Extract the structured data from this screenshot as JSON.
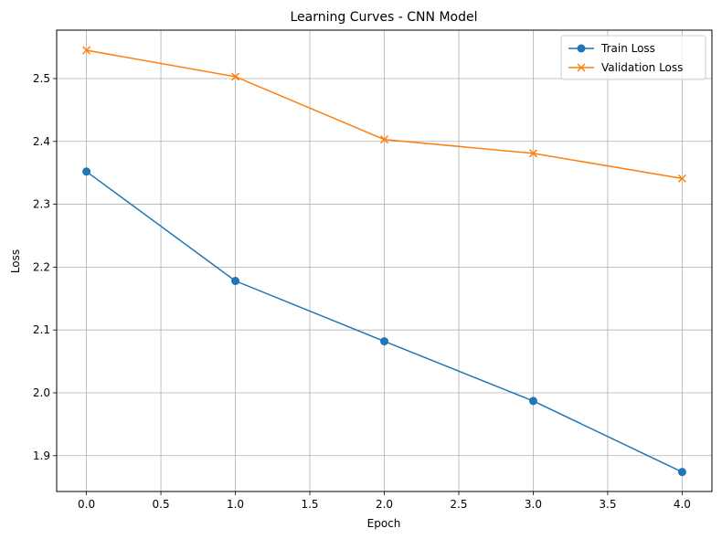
{
  "chart_data": {
    "type": "line",
    "title": "Learning Curves - CNN Model",
    "xlabel": "Epoch",
    "ylabel": "Loss",
    "xlim": [
      -0.2,
      4.2
    ],
    "ylim": [
      1.843,
      2.577
    ],
    "grid": true,
    "legend_position": "top-right",
    "x": [
      0,
      1,
      2,
      3,
      4
    ],
    "x_ticks": [
      0.0,
      0.5,
      1.0,
      1.5,
      2.0,
      2.5,
      3.0,
      3.5,
      4.0
    ],
    "x_tick_labels": [
      "0.0",
      "0.5",
      "1.0",
      "1.5",
      "2.0",
      "2.5",
      "3.0",
      "3.5",
      "4.0"
    ],
    "y_ticks": [
      1.9,
      2.0,
      2.1,
      2.2,
      2.3,
      2.4,
      2.5
    ],
    "y_tick_labels": [
      "1.9",
      "2.0",
      "2.1",
      "2.2",
      "2.3",
      "2.4",
      "2.5"
    ],
    "series": [
      {
        "name": "Train Loss",
        "marker": "circle",
        "color": "#1f77b4",
        "values": [
          2.352,
          2.178,
          2.082,
          1.987,
          1.874
        ]
      },
      {
        "name": "Validation Loss",
        "marker": "x",
        "color": "#ff7f0e",
        "values": [
          2.545,
          2.503,
          2.403,
          2.381,
          2.341
        ]
      }
    ]
  }
}
